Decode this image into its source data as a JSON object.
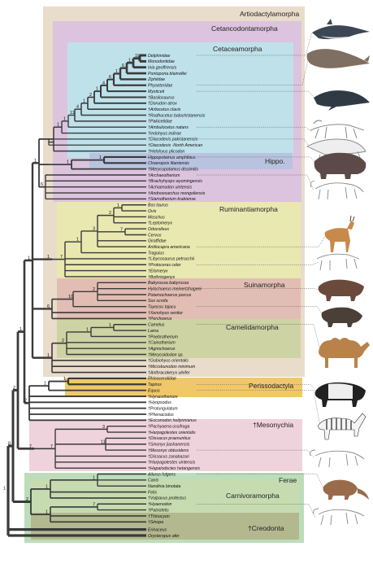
{
  "clade_labels": [
    "Artiodactylamorpha",
    "Cetancodontamorpha",
    "Cetaceamorpha",
    "Hippo.",
    "Ruminantiamorpha",
    "Suinamorpha",
    "Camelidamorpha",
    "Perissodactyla",
    "†Mesonychia",
    "Ferae",
    "Carnivoramorpha",
    "†Creodonta"
  ],
  "taxa": [
    "Delphinidae",
    "Monodontidae",
    "Inia geoffrensis",
    "Pontoporia blainvillei",
    "Ziphiidae",
    "Physeteridae",
    "Mysticeti",
    "†Basilosaurus",
    "†Dorudon atrox",
    "†Artiocetus clavis",
    "†Rodhocetus balochistanensis",
    "†Pakicetidae",
    "†Ambulocetus natans",
    "†Indohyus indirae",
    "†Diacodexis pakistanensis",
    "†Diacodexis -North American",
    "†Helohyus plicodon",
    "Hippopotamus amphibius",
    "Choeropsis liberiensis",
    "†Merycopotamus dissimilis",
    "†Archaeotherium",
    "†Brachyhyops wyomingensis",
    "†Achaenodon uintensis",
    "†Andrewsarchus mongoliensis",
    "†Siamotherium krabiense",
    "Bos taurus",
    "Ovis",
    "Moschus",
    "†Leptomeryx",
    "Odocoileus",
    "Cervus",
    "Giraffidae",
    "Antilocapra americana",
    "Tragulus",
    "†Libycosaurus petrocchii",
    "†Protoceras celer",
    "†Elomeryx",
    "†Bothriogenys",
    "Babyrousa babyrussa",
    "Hylochoerus meinertzhageni",
    "Potamochoerus porcus",
    "Sus scrofa",
    "Tayassu tajacu",
    "†Xenohyus venitor",
    "†Perchoerus",
    "Camelus",
    "Lama",
    "†Poebrotherium",
    "†Cainotherium",
    "†Agriochoerus",
    "†Merycoidodon sp.",
    "†Gobiohyus orientalis",
    "†Microbunodon minimum",
    "†Anthracokeryx ulnifer",
    "Rhinocerotidae",
    "Tapirus",
    "Equus",
    "†Hyracotherium",
    "†Hyopsodus",
    "†Protungulatum",
    "†Phenacodus",
    "†Eoconodon heilprinianus",
    "†Pachyaena ossifraga",
    "†Harpagolestes orientalis",
    "†Dissacus praenuntius",
    "†Sinonyx jiashanensis",
    "†Mesonyx obtusidens",
    "†Dissacus zanabazari",
    "†Harpagolestes uintensis",
    "†Hapalodectes hetangensis",
    "Ailurus fulgens",
    "Canis",
    "Nandinia binotata",
    "Felis",
    "†Vulpavus profectus",
    "†Hyaenodon",
    "†Patriofelis",
    "†Thinocyon",
    "†Sinopa",
    "Erinaceus",
    "Orycteropus afer"
  ],
  "node_values": [
    "10",
    "1",
    "6",
    "1",
    "6",
    "4",
    "1",
    "2",
    "1",
    "4",
    "11",
    "1",
    "1",
    "10",
    "1",
    "1",
    "6",
    "1",
    "1",
    "2",
    "7",
    "3",
    "1",
    "7",
    "1",
    "2",
    "10",
    "6",
    "1",
    "1",
    "2",
    "1",
    "1",
    "1",
    "1",
    "3",
    "11",
    "7",
    "7",
    "1",
    "1",
    "7",
    "1",
    "2",
    "2",
    "1",
    "2",
    "8",
    "1"
  ],
  "colors": {
    "artiodactylamorpha": "#e9dccb",
    "cetancodontamorpha": "#dcc3de",
    "cetaceamorpha": "#bfe1ea",
    "hippo": "#b9c3e0",
    "ruminantiamorpha": "#e8e8b0",
    "suinamorpha": "#e2bdb3",
    "camelidamorpha": "#cdd3a3",
    "perissodactyla": "#f0c86a",
    "mesonychia": "#efd3dc",
    "ferae": "#bddcb9",
    "carnivoramorpha": "#c6dcb0",
    "creodonta": "#b3b88f"
  }
}
